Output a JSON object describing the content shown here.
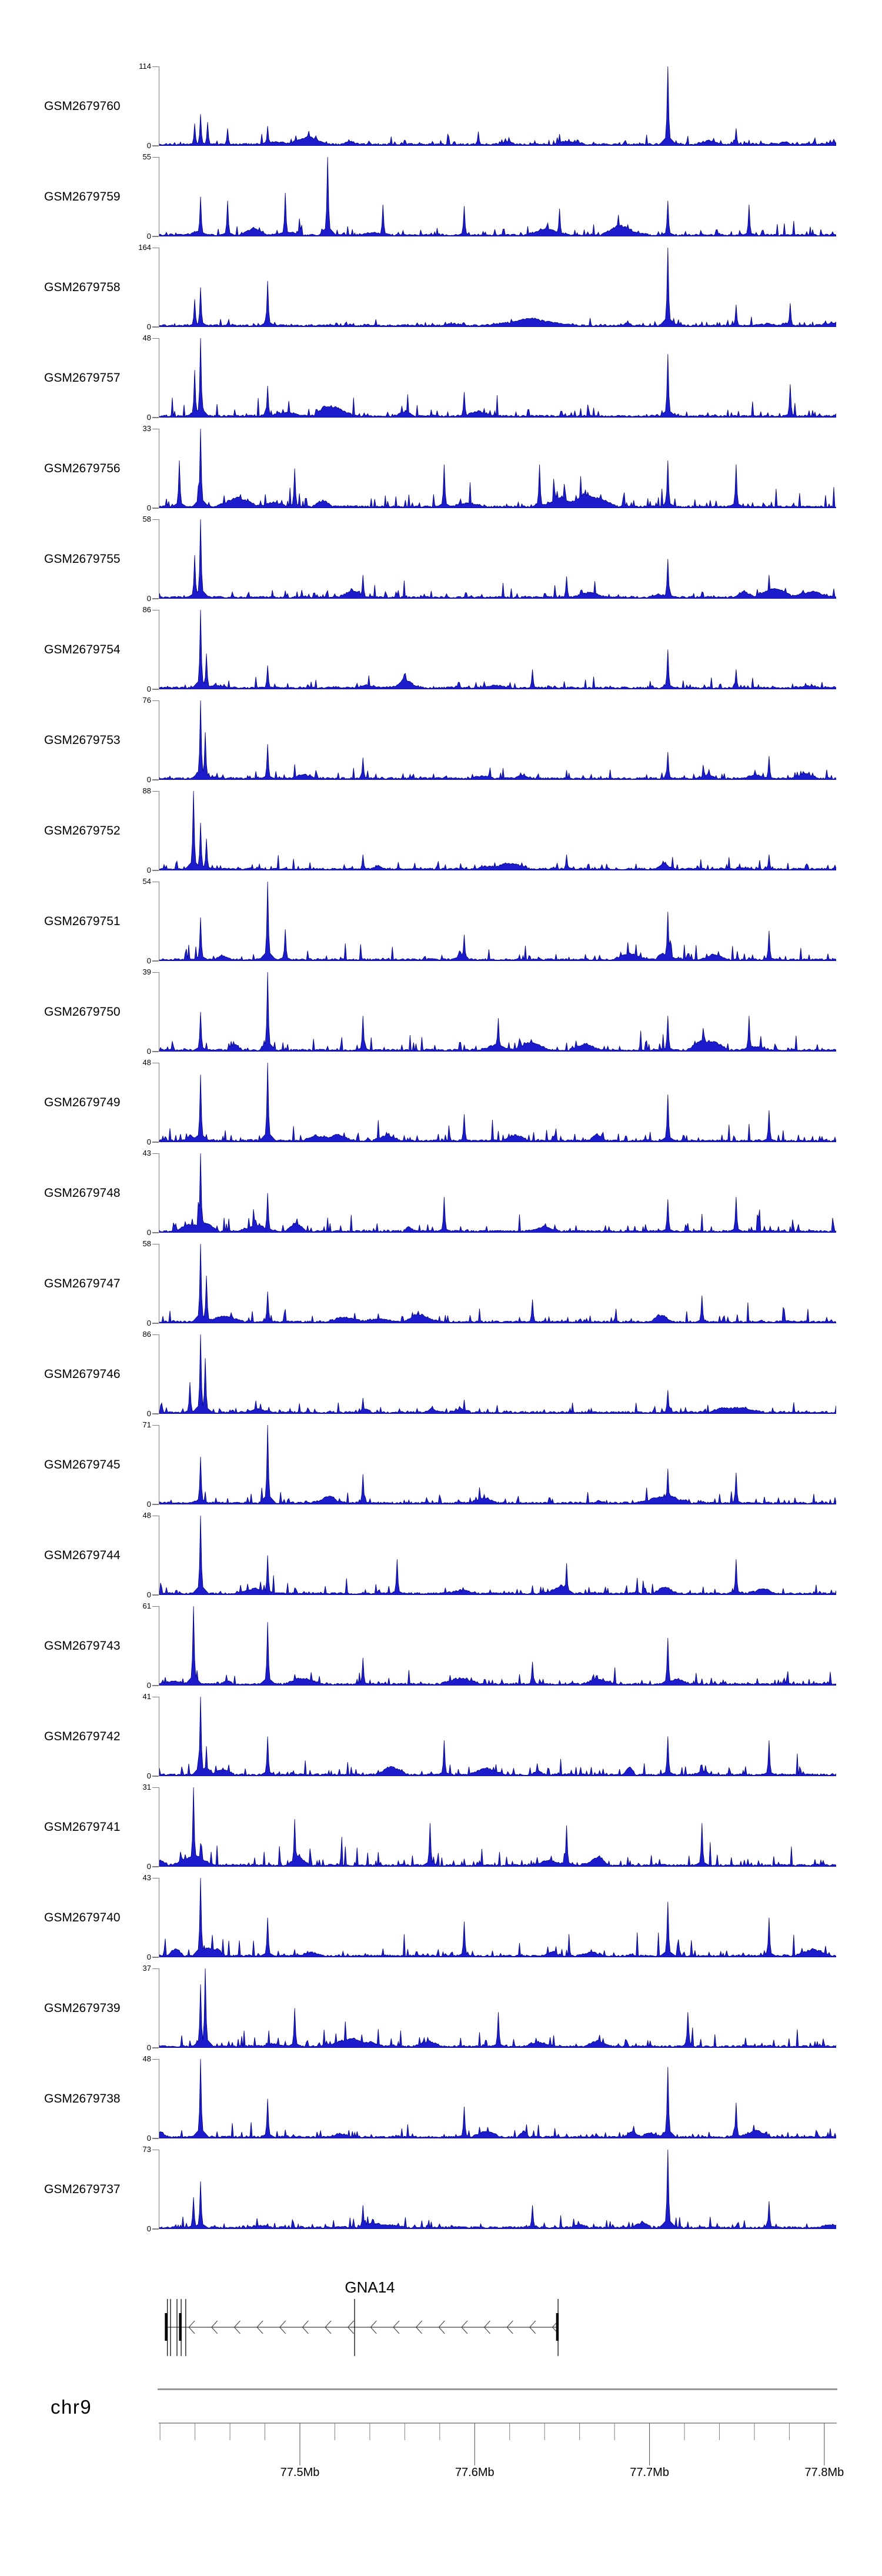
{
  "figure": {
    "kind": "genome-browser coverage plot",
    "chromosome_label": "chr9",
    "gene_label": "GNA14"
  },
  "chart_data": {
    "type": "area",
    "description": "24 stacked read-coverage signal tracks (GEO samples) over chr9 around the GNA14 locus; blue filled histogram signal, per-track y-axis from 0 to track maximum",
    "signal_color": "#1c1ccd",
    "signal_edge_color": "#00007d",
    "axis_gray": "#7f7f7f",
    "x_axis": {
      "chromosome": "chr9",
      "range_mb": [
        77.419,
        77.807
      ],
      "major_ticks_mb": [
        77.5,
        77.6,
        77.7,
        77.8
      ],
      "major_tick_labels": [
        "77.5Mb",
        "77.6Mb",
        "77.7Mb",
        "77.8Mb"
      ],
      "minor_tick_start_mb": 77.42,
      "minor_tick_step_mb": 0.02,
      "minor_tick_end_mb": 77.78
    },
    "gene_track": {
      "name": "GNA14",
      "strand": "-",
      "span_mb": [
        77.4235,
        77.6477
      ],
      "exon_lines_mb": [
        77.4242,
        77.426,
        77.4297,
        77.4321,
        77.4347,
        77.5313,
        77.6477
      ],
      "cds_boxes_mb": [
        77.4235,
        77.4316,
        77.6473
      ],
      "arrow_start_mb": 77.438,
      "arrow_end_mb": 77.646,
      "arrow_count": 17
    },
    "tracks": [
      {
        "label": "GSM2679760",
        "ymin": 0,
        "ymax": 114,
        "noise": 0.53,
        "peaks": [
          [
            0.75,
            1
          ],
          [
            0.06,
            0.4
          ],
          [
            0.052,
            0.28
          ],
          [
            0.072,
            0.3
          ],
          [
            0.1,
            0.22
          ],
          [
            0.16,
            0.25
          ],
          [
            0.47,
            0.18
          ],
          [
            0.59,
            0.15
          ],
          [
            0.85,
            0.22
          ]
        ],
        "mounds": [
          [
            0.22,
            0.1,
            17
          ]
        ]
      },
      {
        "label": "GSM2679759",
        "ymin": 0,
        "ymax": 55,
        "noise": 0.88,
        "peaks": [
          [
            0.248,
            1
          ],
          [
            0.185,
            0.55
          ],
          [
            0.06,
            0.5
          ],
          [
            0.1,
            0.45
          ],
          [
            0.33,
            0.4
          ],
          [
            0.45,
            0.38
          ],
          [
            0.59,
            0.35
          ],
          [
            0.75,
            0.45
          ],
          [
            0.87,
            0.4
          ]
        ],
        "mounds": []
      },
      {
        "label": "GSM2679758",
        "ymin": 0,
        "ymax": 164,
        "noise": 0.41,
        "peaks": [
          [
            0.75,
            1
          ],
          [
            0.16,
            0.58
          ],
          [
            0.06,
            0.5
          ],
          [
            0.052,
            0.35
          ],
          [
            0.85,
            0.28
          ],
          [
            0.93,
            0.3
          ]
        ],
        "mounds": [
          [
            0.55,
            0.07,
            40
          ]
        ]
      },
      {
        "label": "GSM2679757",
        "ymin": 0,
        "ymax": 48,
        "noise": 0.97,
        "peaks": [
          [
            0.06,
            1
          ],
          [
            0.052,
            0.6
          ],
          [
            0.75,
            0.8
          ],
          [
            0.16,
            0.4
          ],
          [
            0.45,
            0.32
          ],
          [
            0.93,
            0.42
          ]
        ],
        "mounds": []
      },
      {
        "label": "GSM2679756",
        "ymin": 0,
        "ymax": 33,
        "noise": 1.25,
        "peaks": [
          [
            0.06,
            1
          ],
          [
            0.03,
            0.6
          ],
          [
            0.2,
            0.5
          ],
          [
            0.42,
            0.55
          ],
          [
            0.56,
            0.55
          ],
          [
            0.75,
            0.6
          ],
          [
            0.85,
            0.55
          ]
        ],
        "mounds": []
      },
      {
        "label": "GSM2679755",
        "ymin": 0,
        "ymax": 58,
        "noise": 0.85,
        "peaks": [
          [
            0.06,
            1
          ],
          [
            0.052,
            0.55
          ],
          [
            0.75,
            0.5
          ],
          [
            0.3,
            0.3
          ],
          [
            0.6,
            0.28
          ],
          [
            0.9,
            0.3
          ]
        ],
        "mounds": []
      },
      {
        "label": "GSM2679754",
        "ymin": 0,
        "ymax": 86,
        "noise": 0.65,
        "peaks": [
          [
            0.06,
            1
          ],
          [
            0.07,
            0.45
          ],
          [
            0.75,
            0.5
          ],
          [
            0.16,
            0.3
          ],
          [
            0.55,
            0.25
          ],
          [
            0.85,
            0.25
          ]
        ],
        "mounds": []
      },
      {
        "label": "GSM2679753",
        "ymin": 0,
        "ymax": 76,
        "noise": 0.7,
        "peaks": [
          [
            0.06,
            1
          ],
          [
            0.068,
            0.6
          ],
          [
            0.16,
            0.45
          ],
          [
            0.3,
            0.28
          ],
          [
            0.75,
            0.35
          ],
          [
            0.9,
            0.3
          ]
        ],
        "mounds": []
      },
      {
        "label": "GSM2679752",
        "ymin": 0,
        "ymax": 88,
        "noise": 0.64,
        "peaks": [
          [
            0.05,
            1
          ],
          [
            0.06,
            0.6
          ],
          [
            0.07,
            0.4
          ],
          [
            0.3,
            0.2
          ],
          [
            0.6,
            0.2
          ],
          [
            0.9,
            0.2
          ]
        ],
        "mounds": []
      },
      {
        "label": "GSM2679751",
        "ymin": 0,
        "ymax": 54,
        "noise": 0.89,
        "peaks": [
          [
            0.16,
            1
          ],
          [
            0.06,
            0.55
          ],
          [
            0.75,
            0.62
          ],
          [
            0.185,
            0.4
          ],
          [
            0.45,
            0.33
          ],
          [
            0.9,
            0.38
          ]
        ],
        "mounds": []
      },
      {
        "label": "GSM2679750",
        "ymin": 0,
        "ymax": 39,
        "noise": 1.12,
        "peaks": [
          [
            0.16,
            1
          ],
          [
            0.06,
            0.5
          ],
          [
            0.3,
            0.45
          ],
          [
            0.5,
            0.42
          ],
          [
            0.75,
            0.45
          ],
          [
            0.87,
            0.45
          ]
        ],
        "mounds": []
      },
      {
        "label": "GSM2679749",
        "ymin": 0,
        "ymax": 48,
        "noise": 0.97,
        "peaks": [
          [
            0.16,
            1
          ],
          [
            0.06,
            0.85
          ],
          [
            0.75,
            0.6
          ],
          [
            0.45,
            0.35
          ],
          [
            0.9,
            0.4
          ]
        ],
        "mounds": []
      },
      {
        "label": "GSM2679748",
        "ymin": 0,
        "ymax": 43,
        "noise": 1.05,
        "peaks": [
          [
            0.06,
            1
          ],
          [
            0.16,
            0.5
          ],
          [
            0.42,
            0.45
          ],
          [
            0.75,
            0.42
          ],
          [
            0.85,
            0.45
          ]
        ],
        "mounds": []
      },
      {
        "label": "GSM2679747",
        "ymin": 0,
        "ymax": 58,
        "noise": 0.85,
        "peaks": [
          [
            0.06,
            1
          ],
          [
            0.07,
            0.6
          ],
          [
            0.16,
            0.4
          ],
          [
            0.55,
            0.3
          ],
          [
            0.8,
            0.35
          ]
        ],
        "mounds": []
      },
      {
        "label": "GSM2679746",
        "ymin": 0,
        "ymax": 86,
        "noise": 0.65,
        "peaks": [
          [
            0.06,
            1
          ],
          [
            0.068,
            0.7
          ],
          [
            0.045,
            0.4
          ],
          [
            0.3,
            0.2
          ],
          [
            0.75,
            0.3
          ]
        ],
        "mounds": []
      },
      {
        "label": "GSM2679745",
        "ymin": 0,
        "ymax": 71,
        "noise": 0.74,
        "peaks": [
          [
            0.16,
            1
          ],
          [
            0.06,
            0.6
          ],
          [
            0.3,
            0.38
          ],
          [
            0.75,
            0.45
          ],
          [
            0.85,
            0.4
          ]
        ],
        "mounds": []
      },
      {
        "label": "GSM2679744",
        "ymin": 0,
        "ymax": 48,
        "noise": 0.97,
        "peaks": [
          [
            0.06,
            1
          ],
          [
            0.16,
            0.5
          ],
          [
            0.35,
            0.45
          ],
          [
            0.6,
            0.4
          ],
          [
            0.85,
            0.45
          ]
        ],
        "mounds": []
      },
      {
        "label": "GSM2679743",
        "ymin": 0,
        "ymax": 61,
        "noise": 0.82,
        "peaks": [
          [
            0.05,
            1
          ],
          [
            0.16,
            0.8
          ],
          [
            0.75,
            0.6
          ],
          [
            0.3,
            0.35
          ],
          [
            0.55,
            0.3
          ]
        ],
        "mounds": []
      },
      {
        "label": "GSM2679742",
        "ymin": 0,
        "ymax": 41,
        "noise": 1.08,
        "peaks": [
          [
            0.06,
            1
          ],
          [
            0.16,
            0.5
          ],
          [
            0.42,
            0.45
          ],
          [
            0.75,
            0.5
          ],
          [
            0.9,
            0.45
          ]
        ],
        "mounds": []
      },
      {
        "label": "GSM2679741",
        "ymin": 0,
        "ymax": 31,
        "noise": 1.25,
        "peaks": [
          [
            0.05,
            1
          ],
          [
            0.2,
            0.6
          ],
          [
            0.4,
            0.55
          ],
          [
            0.6,
            0.52
          ],
          [
            0.8,
            0.55
          ]
        ],
        "mounds": []
      },
      {
        "label": "GSM2679740",
        "ymin": 0,
        "ymax": 43,
        "noise": 1.05,
        "peaks": [
          [
            0.06,
            1
          ],
          [
            0.75,
            0.7
          ],
          [
            0.16,
            0.5
          ],
          [
            0.45,
            0.45
          ],
          [
            0.9,
            0.5
          ]
        ],
        "mounds": []
      },
      {
        "label": "GSM2679739",
        "ymin": 0,
        "ymax": 37,
        "noise": 1.16,
        "peaks": [
          [
            0.068,
            1
          ],
          [
            0.06,
            0.8
          ],
          [
            0.2,
            0.5
          ],
          [
            0.5,
            0.45
          ],
          [
            0.78,
            0.45
          ]
        ],
        "mounds": []
      },
      {
        "label": "GSM2679738",
        "ymin": 0,
        "ymax": 48,
        "noise": 0.97,
        "peaks": [
          [
            0.06,
            1
          ],
          [
            0.75,
            0.9
          ],
          [
            0.16,
            0.5
          ],
          [
            0.45,
            0.4
          ],
          [
            0.85,
            0.45
          ]
        ],
        "mounds": []
      },
      {
        "label": "GSM2679737",
        "ymin": 0,
        "ymax": 73,
        "noise": 0.72,
        "peaks": [
          [
            0.75,
            1
          ],
          [
            0.06,
            0.6
          ],
          [
            0.05,
            0.4
          ],
          [
            0.3,
            0.3
          ],
          [
            0.55,
            0.3
          ],
          [
            0.9,
            0.35
          ]
        ],
        "mounds": []
      }
    ]
  }
}
